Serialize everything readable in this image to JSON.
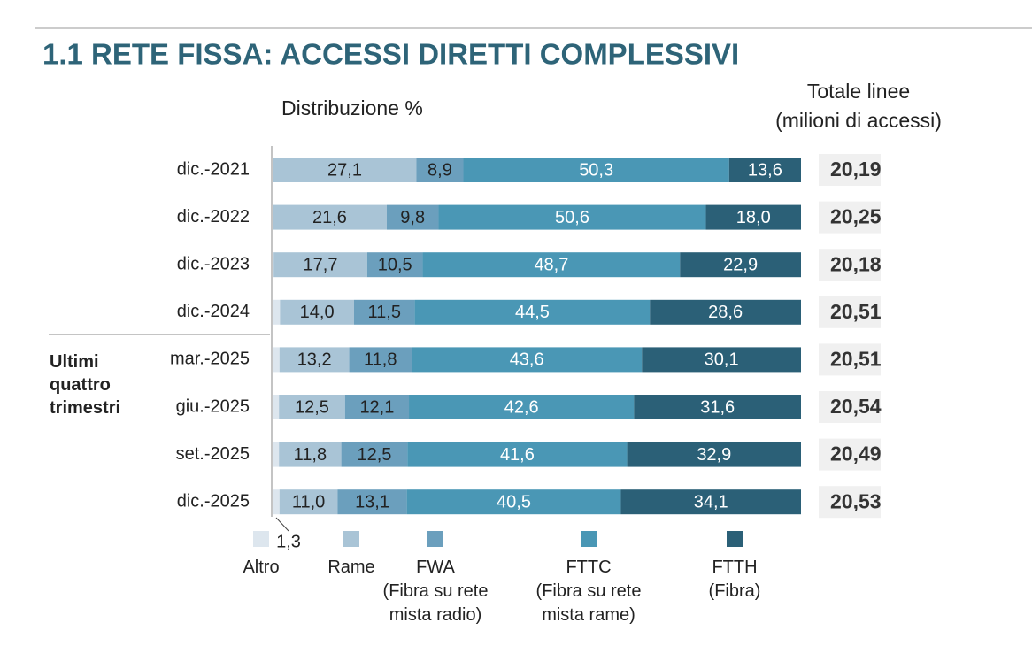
{
  "chart_data": {
    "type": "stacked-bar-horizontal",
    "title": "1.1 RETE FISSA: ACCESSI DIRETTI COMPLESSIVI",
    "subtitle": "Distribuzione %",
    "group_label": "Ultimi\nquattro\ntrimestri",
    "categories": [
      "dic.-2021",
      "dic.-2022",
      "dic.-2023",
      "dic.-2024",
      "mar.-2025",
      "giu.-2025",
      "set.-2025",
      "dic.-2025"
    ],
    "xlim": [
      0,
      100
    ],
    "series": [
      {
        "name": "Altro",
        "color": "#dde6ee",
        "text_color": "#222222",
        "values": [
          0.1,
          0,
          0.2,
          1.4,
          1.3,
          1.2,
          1.2,
          1.3
        ],
        "value_labels": [
          null,
          null,
          null,
          null,
          null,
          null,
          null,
          "1,3"
        ]
      },
      {
        "name": "Rame",
        "color": "#a9c4d6",
        "text_color": "#222222",
        "values": [
          27.1,
          21.6,
          17.7,
          14.0,
          13.2,
          12.5,
          11.8,
          11.0
        ],
        "value_labels": [
          "27,1",
          "21,6",
          "17,7",
          "14,0",
          "13,2",
          "12,5",
          "11,8",
          "11,0"
        ]
      },
      {
        "name": "FWA\n(Fibra su rete\nmista radio)",
        "color": "#6b9fbd",
        "text_color": "#222222",
        "values": [
          8.9,
          9.8,
          10.5,
          11.5,
          11.8,
          12.1,
          12.5,
          13.1
        ],
        "value_labels": [
          "8,9",
          "9,8",
          "10,5",
          "11,5",
          "11,8",
          "12,1",
          "12,5",
          "13,1"
        ]
      },
      {
        "name": "FTTC\n(Fibra su rete\nmista rame)",
        "color": "#4a97b5",
        "text_color": "#ffffff",
        "values": [
          50.3,
          50.6,
          48.7,
          44.5,
          43.6,
          42.6,
          41.6,
          40.5
        ],
        "value_labels": [
          "50,3",
          "50,6",
          "48,7",
          "44,5",
          "43,6",
          "42,6",
          "41,6",
          "40,5"
        ]
      },
      {
        "name": "FTTH\n(Fibra)",
        "color": "#2b6077",
        "text_color": "#ffffff",
        "values": [
          13.6,
          18.0,
          22.9,
          28.6,
          30.1,
          31.6,
          32.9,
          34.1
        ],
        "value_labels": [
          "13,6",
          "18,0",
          "22,9",
          "28,6",
          "30,1",
          "31,6",
          "32,9",
          "34,1"
        ]
      }
    ],
    "totals": {
      "title": "Totale linee\n(milioni di accessi)",
      "values": [
        20.19,
        20.25,
        20.18,
        20.51,
        20.51,
        20.54,
        20.49,
        20.53
      ],
      "value_labels": [
        "20,19",
        "20,25",
        "20,18",
        "20,51",
        "20,51",
        "20,54",
        "20,49",
        "20,53"
      ]
    }
  }
}
